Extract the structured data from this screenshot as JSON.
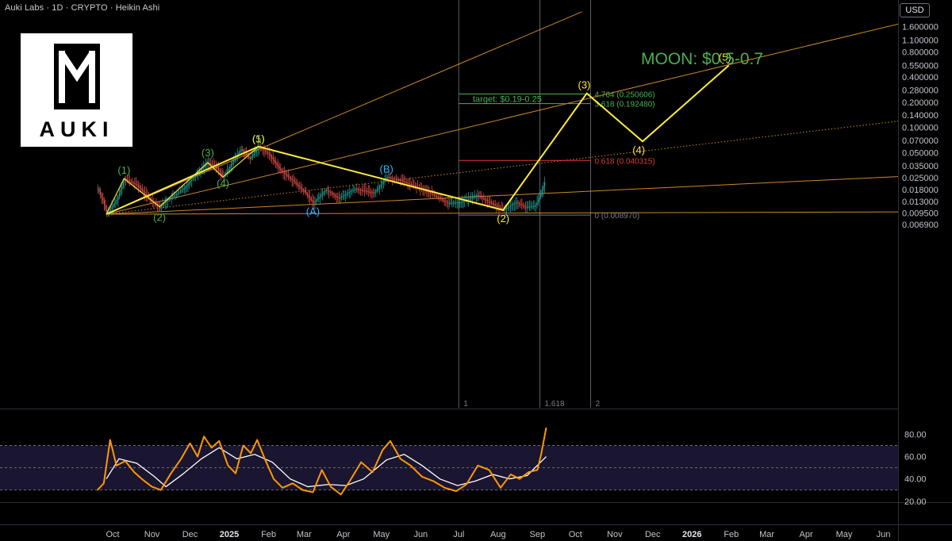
{
  "header": {
    "title": "Auki Labs · 1D · CRYPTO · Heikin Ashi",
    "currency": "USD"
  },
  "logo": {
    "text": "AUKI"
  },
  "annotations": {
    "moon": "MOON: $0.5-0.7",
    "target": "target: $0.19-0.25"
  },
  "colors": {
    "bg": "#000000",
    "up": "#26a69a",
    "down": "#ef5350",
    "wave": "#ffeb3b",
    "fan": "#f0a030",
    "green": "#4caf50",
    "blue": "#29b6f6",
    "red": "#e53935",
    "rsi": "#ff9800",
    "rsi_ma": "#ffffff"
  },
  "chart_data": [
    {
      "type": "candlestick",
      "price_scale": "log",
      "y_ticks": [
        "1.600000",
        "1.100000",
        "0.800000",
        "0.550000",
        "0.400000",
        "0.280000",
        "0.200000",
        "0.140000",
        "0.100000",
        "0.070000",
        "0.050000",
        "0.035000",
        "0.025000",
        "0.018000",
        "0.013000",
        "0.009500",
        "0.006900"
      ],
      "y_tick_values": [
        1.6,
        1.1,
        0.8,
        0.55,
        0.4,
        0.28,
        0.2,
        0.14,
        0.1,
        0.07,
        0.05,
        0.035,
        0.025,
        0.018,
        0.013,
        0.0095,
        0.0069
      ],
      "x_ticks": [
        {
          "label": "Oct",
          "date": "2024-10-01",
          "bold": false
        },
        {
          "label": "Nov",
          "date": "2024-11-01",
          "bold": false
        },
        {
          "label": "Dec",
          "date": "2024-12-01",
          "bold": false
        },
        {
          "label": "2025",
          "date": "2025-01-01",
          "bold": true
        },
        {
          "label": "Feb",
          "date": "2025-02-01",
          "bold": false
        },
        {
          "label": "Mar",
          "date": "2025-03-01",
          "bold": false
        },
        {
          "label": "Apr",
          "date": "2025-04-01",
          "bold": false
        },
        {
          "label": "May",
          "date": "2025-05-01",
          "bold": false
        },
        {
          "label": "Jun",
          "date": "2025-06-01",
          "bold": false
        },
        {
          "label": "Jul",
          "date": "2025-07-01",
          "bold": false
        },
        {
          "label": "Aug",
          "date": "2025-08-01",
          "bold": false
        },
        {
          "label": "Sep",
          "date": "2025-09-01",
          "bold": false
        },
        {
          "label": "Oct",
          "date": "2025-10-01",
          "bold": false
        },
        {
          "label": "Nov",
          "date": "2025-11-01",
          "bold": false
        },
        {
          "label": "Dec",
          "date": "2025-12-01",
          "bold": false
        },
        {
          "label": "2026",
          "date": "2026-01-01",
          "bold": true
        },
        {
          "label": "Feb",
          "date": "2026-02-01",
          "bold": false
        },
        {
          "label": "Mar",
          "date": "2026-03-01",
          "bold": false
        },
        {
          "label": "Apr",
          "date": "2026-04-01",
          "bold": false
        },
        {
          "label": "May",
          "date": "2026-05-01",
          "bold": false
        },
        {
          "label": "Jun",
          "date": "2026-06-01",
          "bold": false
        }
      ],
      "price_path": [
        [
          "2024-09-19",
          0.0185
        ],
        [
          "2024-09-23",
          0.0135
        ],
        [
          "2024-09-26",
          0.0092
        ],
        [
          "2024-10-04",
          0.0135
        ],
        [
          "2024-10-10",
          0.0245
        ],
        [
          "2024-10-20",
          0.0205
        ],
        [
          "2024-10-30",
          0.0138
        ],
        [
          "2024-11-07",
          0.0113
        ],
        [
          "2024-11-15",
          0.0142
        ],
        [
          "2024-11-25",
          0.018
        ],
        [
          "2024-12-05",
          0.027
        ],
        [
          "2024-12-15",
          0.038
        ],
        [
          "2024-12-22",
          0.033
        ],
        [
          "2024-12-27",
          0.0255
        ],
        [
          "2025-01-03",
          0.038
        ],
        [
          "2025-01-10",
          0.055
        ],
        [
          "2025-01-17",
          0.042
        ],
        [
          "2025-01-24",
          0.059
        ],
        [
          "2025-02-01",
          0.048
        ],
        [
          "2025-02-10",
          0.031
        ],
        [
          "2025-02-20",
          0.023
        ],
        [
          "2025-03-01",
          0.017
        ],
        [
          "2025-03-08",
          0.0125
        ],
        [
          "2025-03-18",
          0.018
        ],
        [
          "2025-03-28",
          0.0142
        ],
        [
          "2025-04-10",
          0.0185
        ],
        [
          "2025-04-25",
          0.0165
        ],
        [
          "2025-05-05",
          0.0255
        ],
        [
          "2025-05-15",
          0.0235
        ],
        [
          "2025-05-25",
          0.0205
        ],
        [
          "2025-06-10",
          0.016
        ],
        [
          "2025-06-22",
          0.0125
        ],
        [
          "2025-07-03",
          0.0128
        ],
        [
          "2025-07-15",
          0.0155
        ],
        [
          "2025-07-25",
          0.0128
        ],
        [
          "2025-08-05",
          0.0103
        ],
        [
          "2025-08-15",
          0.0128
        ],
        [
          "2025-08-22",
          0.0112
        ],
        [
          "2025-08-30",
          0.0115
        ],
        [
          "2025-09-03",
          0.0155
        ],
        [
          "2025-09-07",
          0.0235
        ]
      ],
      "wave_labels": [
        {
          "label": "(1)",
          "date": "2024-10-10",
          "price": 0.0305,
          "color": "green"
        },
        {
          "label": "(2)",
          "date": "2024-11-07",
          "price": 0.0083,
          "color": "green"
        },
        {
          "label": "(3)",
          "date": "2024-12-15",
          "price": 0.0495,
          "color": "green"
        },
        {
          "label": "(4)",
          "date": "2024-12-27",
          "price": 0.0212,
          "color": "green"
        },
        {
          "label": "(5)",
          "date": "2025-01-24",
          "price": 0.072,
          "color": "green"
        },
        {
          "label": "(1)",
          "date": "2025-01-24",
          "price": 0.072,
          "color": "wave"
        },
        {
          "label": "(A)",
          "date": "2025-03-08",
          "price": 0.0098,
          "color": "blue"
        },
        {
          "label": "(B)",
          "date": "2025-05-05",
          "price": 0.0315,
          "color": "blue"
        },
        {
          "label": "(2)",
          "date": "2025-08-05",
          "price": 0.0081,
          "color": "wave"
        },
        {
          "label": "(3)",
          "date": "2025-10-08",
          "price": 0.32,
          "color": "wave"
        },
        {
          "label": "(4)",
          "date": "2025-11-20",
          "price": 0.053,
          "color": "wave"
        },
        {
          "label": "(5)",
          "date": "2026-01-27",
          "price": 0.68,
          "color": "wave"
        }
      ],
      "wave_path": [
        [
          "2024-09-26",
          0.0092
        ],
        [
          "2025-01-24",
          0.059
        ],
        [
          "2025-08-05",
          0.0103
        ],
        [
          "2025-10-10",
          0.255
        ],
        [
          "2025-11-23",
          0.068
        ],
        [
          "2026-01-30",
          0.55
        ]
      ],
      "sub_wave_path": [
        [
          "2024-09-26",
          0.0092
        ],
        [
          "2024-10-10",
          0.0245
        ],
        [
          "2024-11-07",
          0.0113
        ],
        [
          "2024-12-15",
          0.038
        ],
        [
          "2024-12-27",
          0.0255
        ],
        [
          "2025-01-24",
          0.059
        ]
      ],
      "fan_lines": [
        {
          "from": [
            "2024-09-26",
            0.0092
          ],
          "to": [
            "2025-10-06",
            2.4
          ],
          "style": "solid"
        },
        {
          "from": [
            "2024-09-26",
            0.0092
          ],
          "to": [
            "2026-06-15",
            1.75
          ],
          "style": "solid"
        },
        {
          "from": [
            "2024-09-26",
            0.0092
          ],
          "to": [
            "2026-06-15",
            0.12
          ],
          "style": "dotted"
        },
        {
          "from": [
            "2024-09-26",
            0.0092
          ],
          "to": [
            "2026-06-15",
            0.026
          ],
          "style": "solid"
        },
        {
          "from": [
            "2024-09-26",
            0.0092
          ],
          "to": [
            "2026-06-15",
            0.0098
          ],
          "style": "solid"
        }
      ],
      "fib_extension": {
        "x_start": "2025-07-01",
        "x_end": "2025-10-13",
        "levels": [
          {
            "label": "4.764 (0.250606)",
            "price": 0.250606,
            "color": "green"
          },
          {
            "label": "3.618 (0.192480)",
            "price": 0.19248,
            "color": "green"
          },
          {
            "label": "0.618 (0.040315)",
            "price": 0.040315,
            "color": "red"
          },
          {
            "label": "0 (0.008970)",
            "price": 0.00897,
            "color": "gray"
          }
        ]
      },
      "fib_time_zones": [
        {
          "label": "1",
          "date": "2025-07-01"
        },
        {
          "label": "1.618",
          "date": "2025-09-03"
        },
        {
          "label": "2",
          "date": "2025-10-13"
        }
      ]
    },
    {
      "type": "line",
      "name": "RSI",
      "y_ticks": [
        "80.00",
        "60.00",
        "40.00",
        "20.00"
      ],
      "y_tick_values": [
        80,
        60,
        40,
        20
      ],
      "band": [
        30,
        70
      ],
      "rsi": [
        [
          "2024-09-19",
          30
        ],
        [
          "2024-09-24",
          36
        ],
        [
          "2024-09-29",
          75
        ],
        [
          "2024-10-04",
          52
        ],
        [
          "2024-10-11",
          56
        ],
        [
          "2024-10-18",
          46
        ],
        [
          "2024-10-25",
          39
        ],
        [
          "2024-11-01",
          33
        ],
        [
          "2024-11-08",
          30
        ],
        [
          "2024-11-16",
          45
        ],
        [
          "2024-11-24",
          58
        ],
        [
          "2024-12-01",
          72
        ],
        [
          "2024-12-07",
          60
        ],
        [
          "2024-12-12",
          78
        ],
        [
          "2024-12-18",
          68
        ],
        [
          "2024-12-24",
          74
        ],
        [
          "2024-12-31",
          52
        ],
        [
          "2025-01-06",
          45
        ],
        [
          "2025-01-12",
          70
        ],
        [
          "2025-01-18",
          63
        ],
        [
          "2025-01-23",
          75
        ],
        [
          "2025-01-29",
          58
        ],
        [
          "2025-02-05",
          40
        ],
        [
          "2025-02-12",
          32
        ],
        [
          "2025-02-20",
          36
        ],
        [
          "2025-02-28",
          30
        ],
        [
          "2025-03-08",
          28
        ],
        [
          "2025-03-15",
          48
        ],
        [
          "2025-03-22",
          33
        ],
        [
          "2025-03-30",
          26
        ],
        [
          "2025-04-06",
          38
        ],
        [
          "2025-04-15",
          55
        ],
        [
          "2025-04-24",
          46
        ],
        [
          "2025-05-02",
          66
        ],
        [
          "2025-05-08",
          74
        ],
        [
          "2025-05-16",
          58
        ],
        [
          "2025-05-24",
          52
        ],
        [
          "2025-06-02",
          42
        ],
        [
          "2025-06-11",
          38
        ],
        [
          "2025-06-20",
          32
        ],
        [
          "2025-06-29",
          29
        ],
        [
          "2025-07-07",
          35
        ],
        [
          "2025-07-16",
          52
        ],
        [
          "2025-07-25",
          48
        ],
        [
          "2025-08-03",
          32
        ],
        [
          "2025-08-11",
          44
        ],
        [
          "2025-08-18",
          40
        ],
        [
          "2025-08-25",
          46
        ],
        [
          "2025-09-01",
          48
        ],
        [
          "2025-09-04",
          62
        ],
        [
          "2025-09-08",
          86
        ]
      ],
      "rsi_ma": [
        [
          "2024-09-26",
          40
        ],
        [
          "2024-10-06",
          58
        ],
        [
          "2024-10-20",
          54
        ],
        [
          "2024-11-03",
          42
        ],
        [
          "2024-11-12",
          33
        ],
        [
          "2024-11-25",
          44
        ],
        [
          "2024-12-10",
          58
        ],
        [
          "2024-12-24",
          68
        ],
        [
          "2025-01-07",
          58
        ],
        [
          "2025-01-21",
          62
        ],
        [
          "2025-02-04",
          55
        ],
        [
          "2025-02-18",
          40
        ],
        [
          "2025-03-04",
          33
        ],
        [
          "2025-03-20",
          35
        ],
        [
          "2025-04-03",
          34
        ],
        [
          "2025-04-17",
          40
        ],
        [
          "2025-05-05",
          57
        ],
        [
          "2025-05-19",
          62
        ],
        [
          "2025-06-02",
          52
        ],
        [
          "2025-06-16",
          40
        ],
        [
          "2025-06-30",
          34
        ],
        [
          "2025-07-14",
          38
        ],
        [
          "2025-07-28",
          44
        ],
        [
          "2025-08-10",
          40
        ],
        [
          "2025-08-24",
          43
        ],
        [
          "2025-09-08",
          60
        ]
      ]
    }
  ]
}
